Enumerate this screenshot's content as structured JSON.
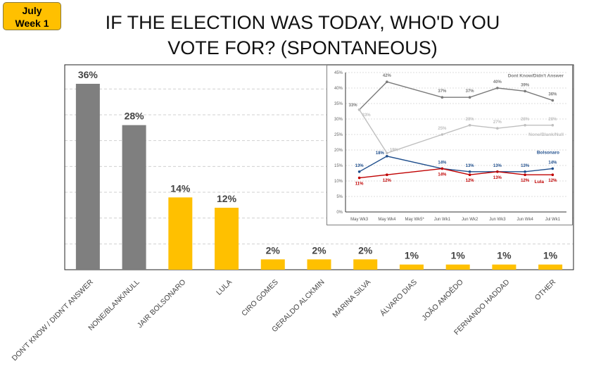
{
  "badge": {
    "line1": "July",
    "line2": "Week 1"
  },
  "title": {
    "line1": "IF THE ELECTION WAS TODAY, WHO'D YOU",
    "line2": "VOTE FOR? (SPONTANEOUS)"
  },
  "colors": {
    "gray": "#7f7f7f",
    "yellow": "#ffc000",
    "dk": "#7a7a7a",
    "none": "#bfbfbf",
    "bolsonaro": "#1f4e8c",
    "lula": "#c00000"
  },
  "chart_data": [
    {
      "type": "bar",
      "title": "IF THE ELECTION WAS TODAY, WHO'D YOU VOTE FOR? (SPONTANEOUS)",
      "categories": [
        "DON'T KNOW / DIDN'T ANSWER",
        "NONE/BLANK/NULL",
        "JAIR BOLSONARO",
        "LULA",
        "CIRO GOMES",
        "GERALDO ALCKMIN",
        "MARINA SILVA",
        "ÁLVARO DIAS",
        "JOÃO AMOÊDO",
        "FERNANDO HADDAD",
        "OTHER"
      ],
      "values": [
        36,
        28,
        14,
        12,
        2,
        2,
        2,
        1,
        1,
        1,
        1
      ],
      "labels": [
        "36%",
        "28%",
        "14%",
        "12%",
        "2%",
        "2%",
        "2%",
        "1%",
        "1%",
        "1%",
        "1%"
      ],
      "bar_colors": [
        "#7f7f7f",
        "#7f7f7f",
        "#ffc000",
        "#ffc000",
        "#ffc000",
        "#ffc000",
        "#ffc000",
        "#ffc000",
        "#ffc000",
        "#ffc000",
        "#ffc000"
      ],
      "ylim": [
        0,
        40
      ],
      "grid": true
    },
    {
      "type": "line",
      "x": [
        "May Wk3",
        "May Wk4",
        "May Wk5*",
        "Jun Wk1",
        "Jun Wk2",
        "Jun Wk3",
        "Jun Wk4",
        "Jul Wk1"
      ],
      "yticks": [
        "0%",
        "5%",
        "10%",
        "15%",
        "20%",
        "25%",
        "30%",
        "35%",
        "40%",
        "45%"
      ],
      "ylim": [
        0,
        45
      ],
      "series": [
        {
          "name": "Dont Know/Didn't Answer",
          "color": "#7a7a7a",
          "values": [
            33,
            42,
            null,
            37,
            37,
            40,
            39,
            36
          ]
        },
        {
          "name": "None/Blank/Null",
          "color": "#bfbfbf",
          "values": [
            33,
            19,
            null,
            25,
            28,
            27,
            28,
            28
          ]
        },
        {
          "name": "Bolsonaro",
          "color": "#1f4e8c",
          "values": [
            13,
            18,
            null,
            14,
            13,
            13,
            13,
            14
          ]
        },
        {
          "name": "Lula",
          "color": "#c00000",
          "values": [
            11,
            12,
            null,
            14,
            12,
            13,
            12,
            12
          ]
        }
      ]
    }
  ]
}
